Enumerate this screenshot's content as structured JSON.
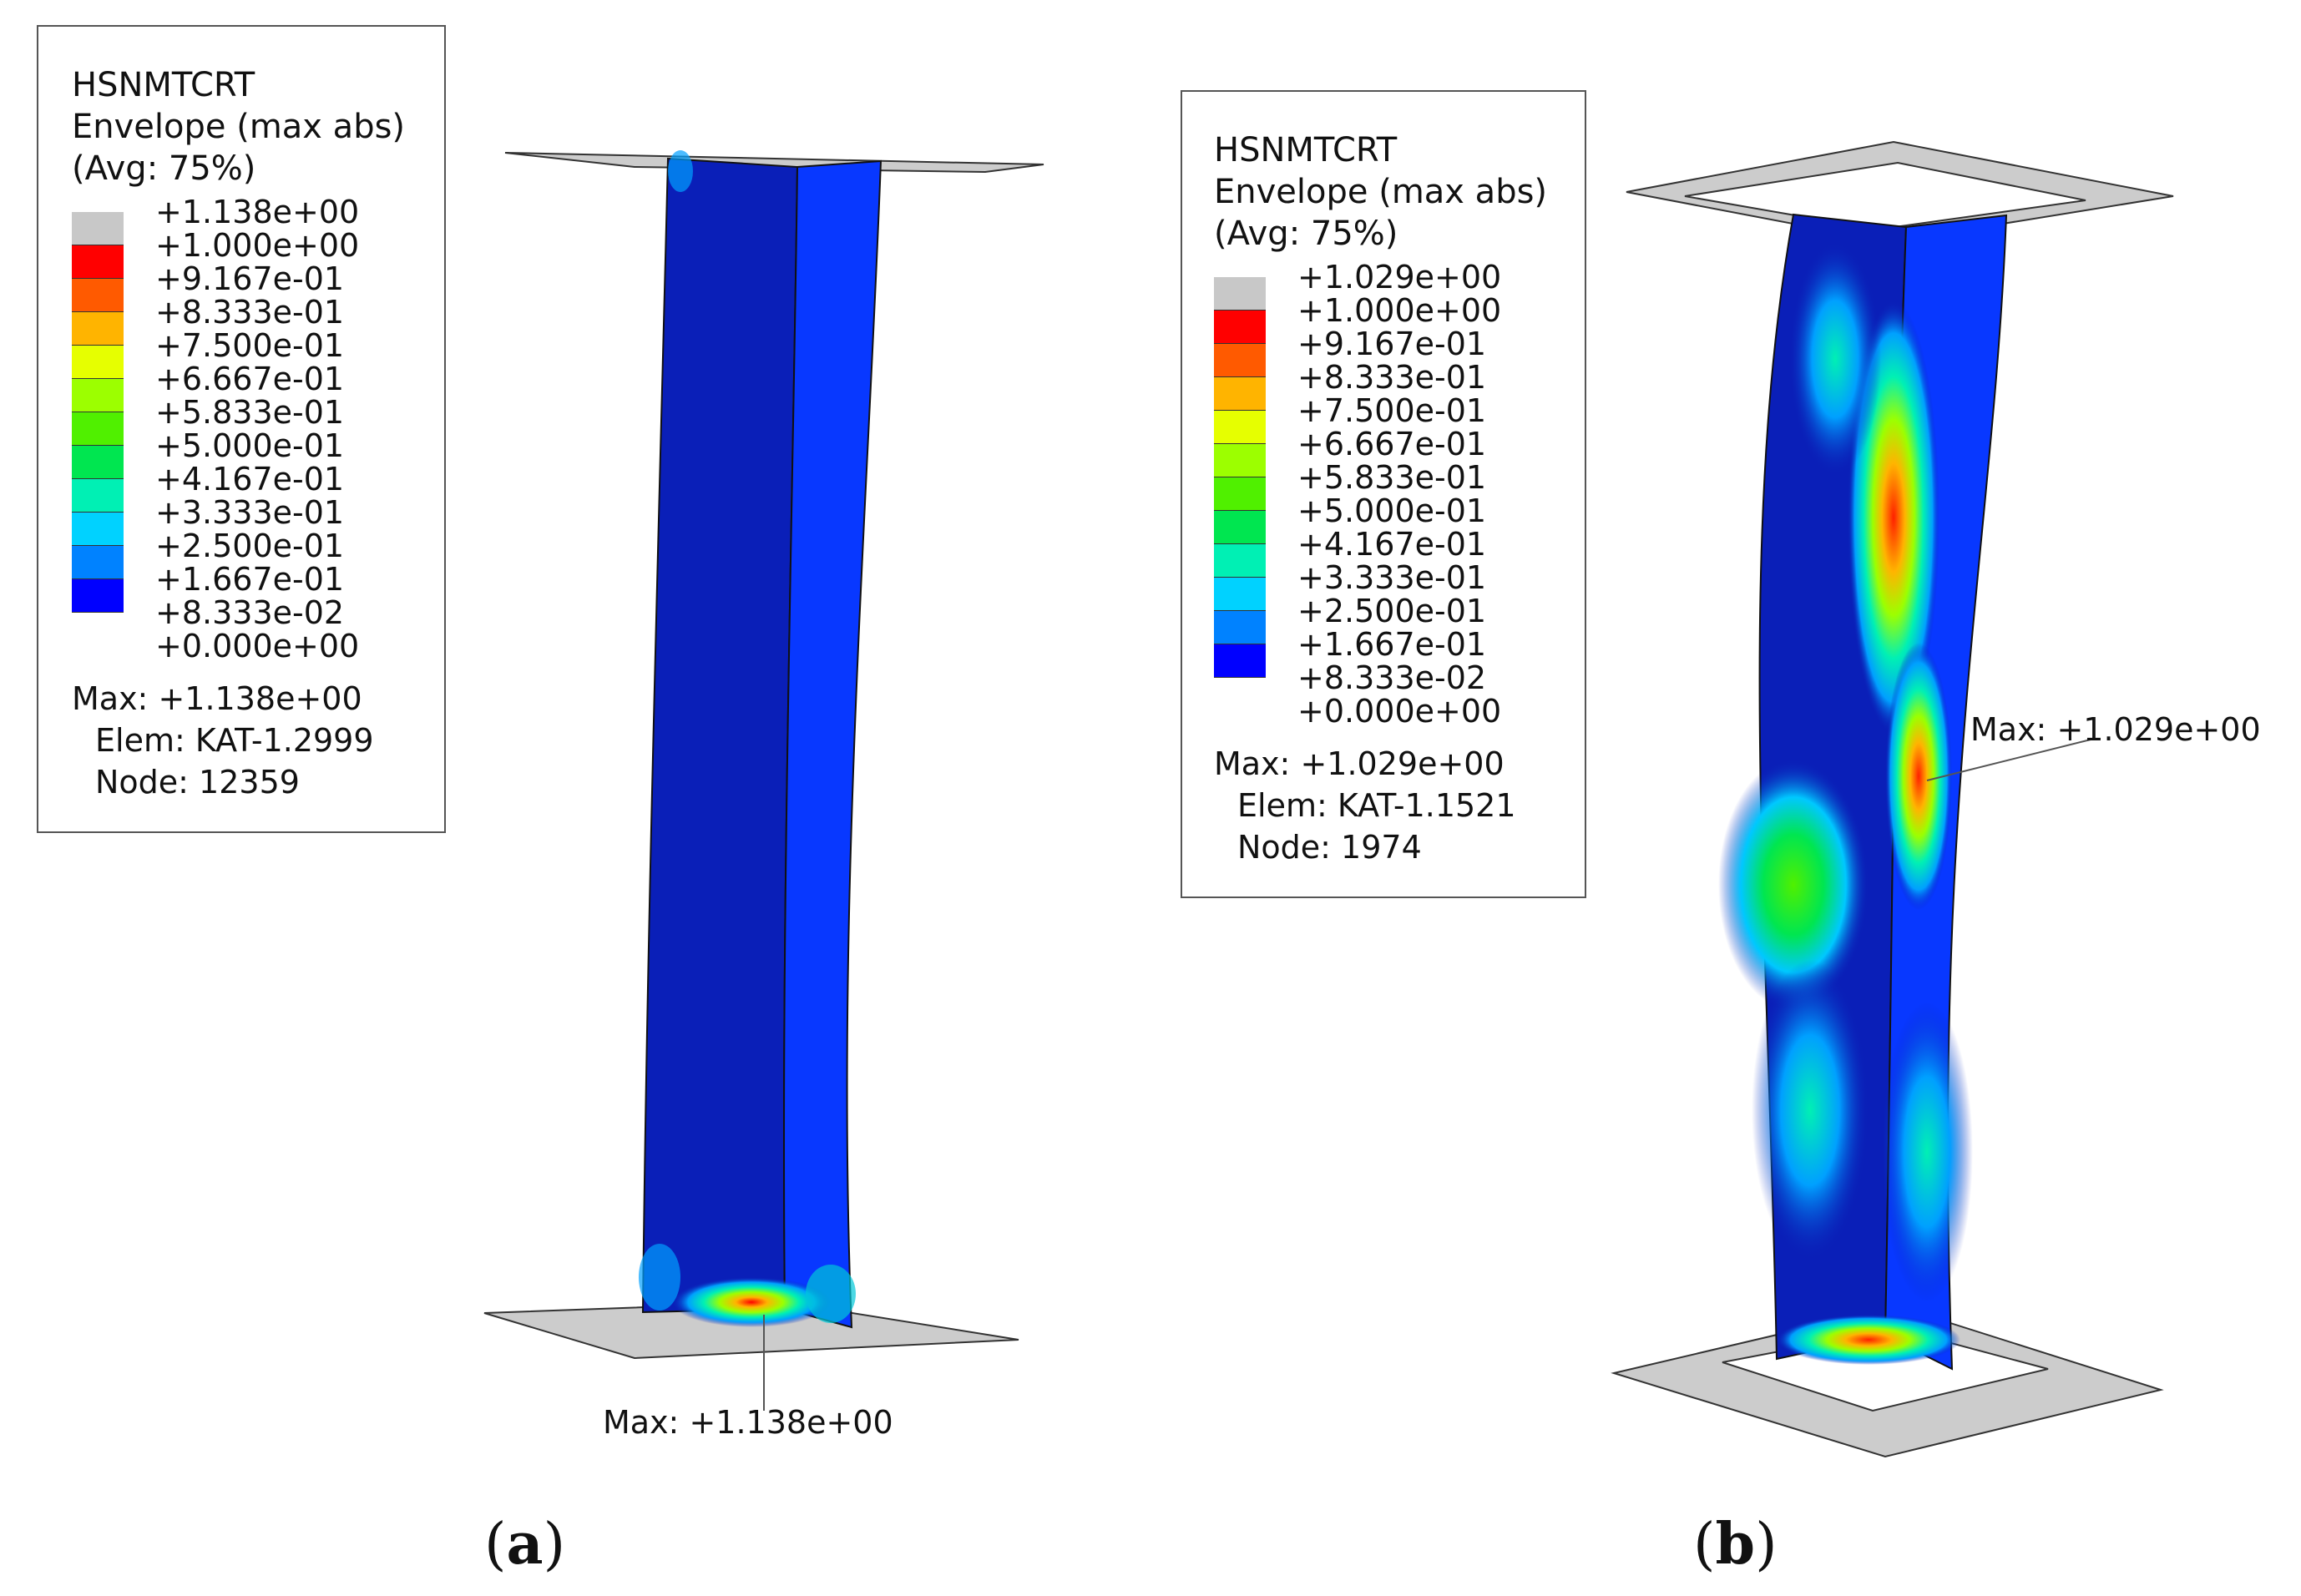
{
  "colors": {
    "scale": [
      "#c8c8c8",
      "#ff0000",
      "#ff5a00",
      "#ffb400",
      "#e6ff00",
      "#9cff00",
      "#50f000",
      "#00e650",
      "#00f0b4",
      "#00d2ff",
      "#0082ff",
      "#0000ff"
    ],
    "plate": "#cccccc",
    "plate_edge": "#333333",
    "column_dark": "#0a1fb8",
    "column_light": "#0838ff"
  },
  "panels": [
    {
      "id": "a",
      "label": "a",
      "legend": {
        "title_lines": [
          "HSNMTCRT",
          "Envelope (max abs)",
          "(Avg: 75%)"
        ],
        "values": [
          "+1.138e+00",
          "+1.000e+00",
          "+9.167e-01",
          "+8.333e-01",
          "+7.500e-01",
          "+6.667e-01",
          "+5.833e-01",
          "+5.000e-01",
          "+4.167e-01",
          "+3.333e-01",
          "+2.500e-01",
          "+1.667e-01",
          "+8.333e-02",
          "+0.000e+00"
        ],
        "max": "Max: +1.138e+00",
        "elem": "Elem: KAT-1.2999",
        "node": "Node: 12359"
      },
      "max_label": "Max: +1.138e+00"
    },
    {
      "id": "b",
      "label": "b",
      "legend": {
        "title_lines": [
          "HSNMTCRT",
          "Envelope (max abs)",
          "(Avg: 75%)"
        ],
        "values": [
          "+1.029e+00",
          "+1.000e+00",
          "+9.167e-01",
          "+8.333e-01",
          "+7.500e-01",
          "+6.667e-01",
          "+5.833e-01",
          "+5.000e-01",
          "+4.167e-01",
          "+3.333e-01",
          "+2.500e-01",
          "+1.667e-01",
          "+8.333e-02",
          "+0.000e+00"
        ],
        "max": "Max: +1.029e+00",
        "elem": "Elem: KAT-1.1521",
        "node": "Node: 1974"
      },
      "max_label": "Max: +1.029e+00"
    }
  ]
}
